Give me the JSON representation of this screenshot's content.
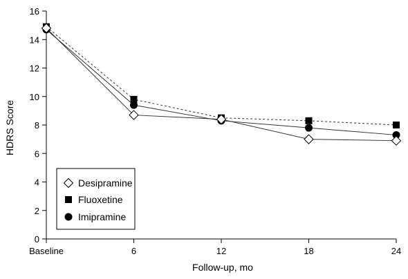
{
  "chart_data": {
    "type": "line",
    "xlabel": "Follow-up, mo",
    "ylabel": "HDRS Score",
    "categories": [
      "Baseline",
      "6",
      "12",
      "18",
      "24"
    ],
    "x": [
      0,
      6,
      12,
      18,
      24
    ],
    "ylim": [
      0,
      16
    ],
    "yticks": [
      0,
      2,
      4,
      6,
      8,
      10,
      12,
      14,
      16
    ],
    "grid": false,
    "legend_position": "bottom-left",
    "series": [
      {
        "name": "Desipramine",
        "marker": "open-diamond",
        "line_style": "solid",
        "values": [
          14.8,
          8.7,
          8.4,
          7.0,
          6.9
        ]
      },
      {
        "name": "Fluoxetine",
        "marker": "filled-square",
        "line_style": "dashed",
        "values": [
          14.9,
          9.8,
          8.5,
          8.3,
          8.0
        ]
      },
      {
        "name": "Imipramine",
        "marker": "filled-circle",
        "line_style": "solid",
        "values": [
          14.7,
          9.4,
          8.3,
          7.8,
          7.3
        ]
      }
    ]
  }
}
